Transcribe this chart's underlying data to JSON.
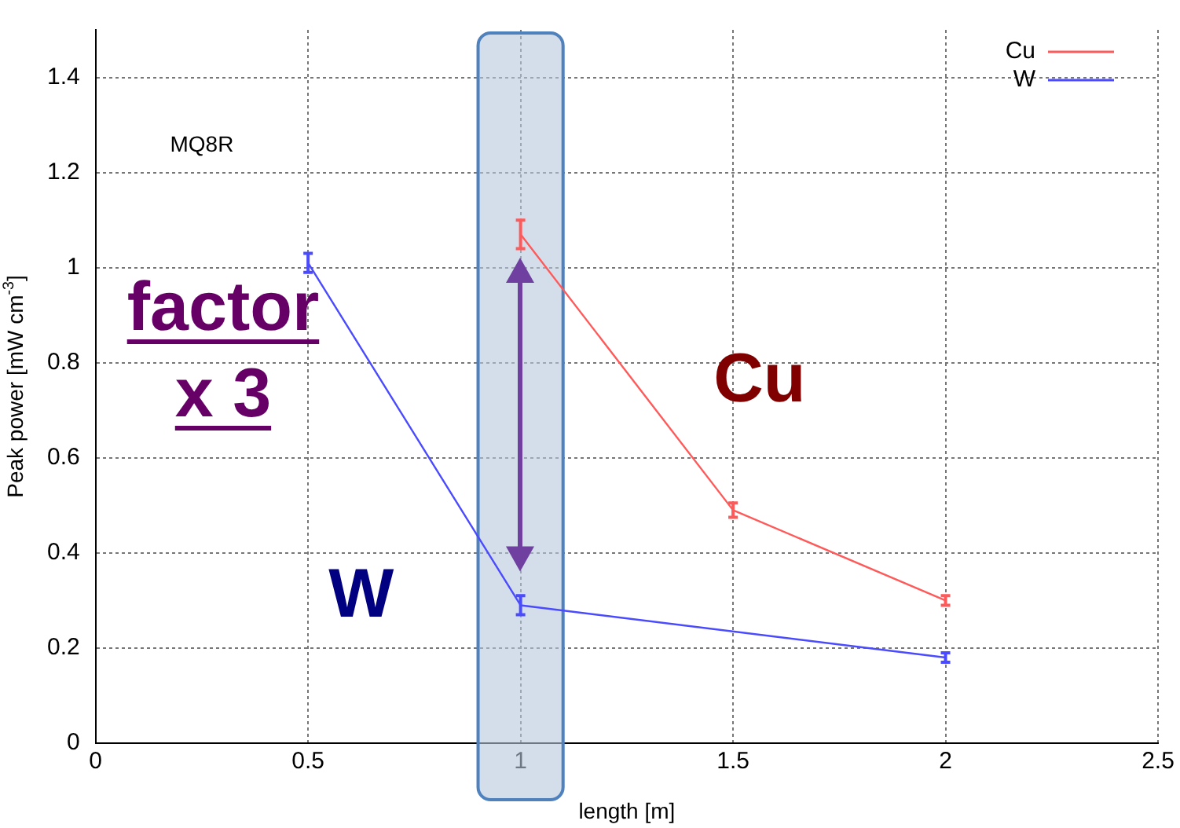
{
  "chart_data": {
    "type": "line",
    "xlabel": "length [m]",
    "ylabel": "Peak power [mW cm$^{-3}$]",
    "xlim": [
      0,
      2.5
    ],
    "xticks": [
      0,
      0.5,
      1,
      1.5,
      2,
      2.5
    ],
    "ylim": [
      0,
      1.5
    ],
    "yticks": [
      0,
      0.2,
      0.4,
      0.6,
      0.8,
      1,
      1.2,
      1.4
    ],
    "series": [
      {
        "name": "Cu",
        "color": "#ff5a5a",
        "x": [
          1,
          1.5,
          2
        ],
        "values": [
          1.07,
          0.49,
          0.3
        ],
        "errors": [
          0.03,
          0.015,
          0.01
        ]
      },
      {
        "name": "W",
        "color": "#4a4aff",
        "x": [
          0.5,
          1,
          2
        ],
        "values": [
          1.01,
          0.29,
          0.18
        ],
        "errors": [
          0.02,
          0.02,
          0.01
        ]
      }
    ],
    "bands": [
      {
        "axis": "x",
        "from": 0.9,
        "to": 1.1,
        "color": "#b8c8de"
      }
    ],
    "annotations": [
      "MQ8R",
      "factor x 3",
      "Cu",
      "W"
    ],
    "grid": true,
    "legend": "top right",
    "line_style": "solid"
  }
}
